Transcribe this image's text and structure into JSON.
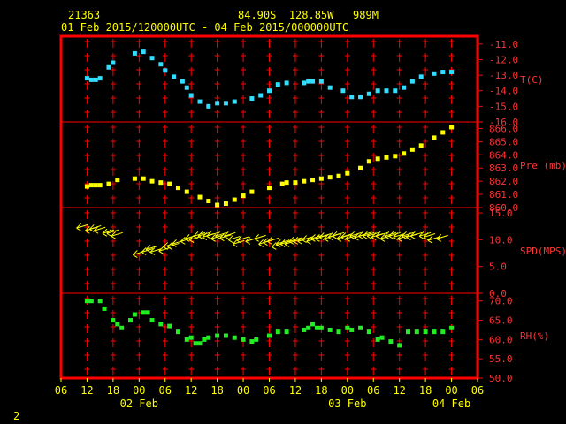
{
  "header": {
    "station_id": "21363",
    "location": "84.90S  128.85W   989M",
    "time_range": "01 Feb 2015/120000UTC - 04 Feb 2015/000000UTC"
  },
  "footer": {
    "page_number": "2"
  },
  "colors": {
    "background": "#000000",
    "frame": "#ff0000",
    "axis_text": "#ffff00",
    "temperature": "#33ddff",
    "pressure": "#ffff00",
    "wind": "#ffff00",
    "humidity": "#22ee22",
    "scale_text": "#ff3333"
  },
  "chart_data": [
    {
      "type": "scatter",
      "panel": "temperature",
      "ylabel": "T(C)",
      "ylim": [
        -16,
        -10.5
      ],
      "yticks": [
        -11.0,
        -12.0,
        -13.0,
        -14.0,
        -15.0,
        -16.0
      ],
      "ytick_labels": [
        "-11.0",
        "-12.0",
        "-13.0",
        "-14.0",
        "-15.0",
        "-16.0"
      ],
      "x": [
        12,
        13,
        14,
        15,
        17,
        18,
        23,
        25,
        27,
        29,
        30,
        32,
        34,
        35,
        36,
        38,
        40,
        42,
        44,
        46,
        50,
        52,
        54,
        56,
        58,
        62,
        63,
        64,
        66,
        68,
        71,
        73,
        75,
        77,
        79,
        81,
        83,
        85,
        87,
        89,
        92,
        94,
        96
      ],
      "y": [
        -13.2,
        -13.3,
        -13.3,
        -13.2,
        -12.5,
        -12.2,
        -11.6,
        -11.5,
        -11.9,
        -12.3,
        -12.7,
        -13.1,
        -13.4,
        -13.8,
        -14.3,
        -14.7,
        -15.0,
        -14.8,
        -14.8,
        -14.7,
        -14.5,
        -14.3,
        -14.0,
        -13.6,
        -13.5,
        -13.5,
        -13.4,
        -13.4,
        -13.4,
        -13.8,
        -14.0,
        -14.4,
        -14.4,
        -14.2,
        -14.0,
        -14.0,
        -14.0,
        -13.8,
        -13.4,
        -13.1,
        -12.9,
        -12.8,
        -12.8
      ]
    },
    {
      "type": "scatter",
      "panel": "pressure",
      "ylabel": "Pre (mb)",
      "ylim": [
        860,
        866.5
      ],
      "yticks": [
        860.0,
        861.0,
        862.0,
        863.0,
        864.0,
        865.0,
        866.0
      ],
      "ytick_labels": [
        "860.0",
        "861.0",
        "862.0",
        "863.0",
        "864.0",
        "865.0",
        "866.0"
      ],
      "x": [
        12,
        13,
        14,
        15,
        17,
        19,
        23,
        25,
        27,
        29,
        31,
        33,
        35,
        38,
        40,
        42,
        44,
        46,
        48,
        50,
        54,
        57,
        58,
        60,
        62,
        64,
        66,
        68,
        70,
        72,
        75,
        77,
        79,
        81,
        83,
        85,
        87,
        89,
        92,
        94,
        96
      ],
      "y": [
        861.6,
        861.7,
        861.7,
        861.7,
        861.8,
        862.1,
        862.2,
        862.2,
        862.0,
        861.9,
        861.8,
        861.5,
        861.2,
        860.8,
        860.5,
        860.2,
        860.3,
        860.6,
        860.9,
        861.2,
        861.5,
        861.8,
        861.9,
        861.9,
        862.0,
        862.1,
        862.2,
        862.3,
        862.4,
        862.6,
        863.0,
        863.5,
        863.7,
        863.8,
        863.9,
        864.1,
        864.4,
        864.7,
        865.3,
        865.7,
        866.1
      ]
    },
    {
      "type": "scatter",
      "panel": "wind",
      "ylabel": "SPD(MPS)",
      "ylim": [
        0,
        16
      ],
      "yticks": [
        0.0,
        5.0,
        10.0,
        15.0
      ],
      "ytick_labels": [
        "0.0",
        "5.0",
        "10.0",
        "15.0"
      ],
      "x": [
        11,
        13,
        14,
        15,
        17,
        18,
        19,
        24,
        26,
        27,
        28,
        30,
        31,
        32,
        33,
        35,
        36,
        37,
        38,
        39,
        40,
        41,
        42,
        43,
        44,
        45,
        46,
        47,
        48,
        50,
        52,
        53,
        54,
        55,
        56,
        57,
        58,
        59,
        60,
        61,
        62,
        63,
        64,
        65,
        66,
        67,
        68,
        69,
        70,
        71,
        72,
        73,
        74,
        75,
        76,
        77,
        78,
        79,
        80,
        81,
        82,
        83,
        84,
        85,
        86,
        87,
        88,
        90,
        91,
        92,
        94
      ],
      "y": [
        12.5,
        12.0,
        12.3,
        12.0,
        11.5,
        11.5,
        11.0,
        7.5,
        8.0,
        8.5,
        8.0,
        8.2,
        9.0,
        9.0,
        9.5,
        10.0,
        10.5,
        10.3,
        11.0,
        11.0,
        10.8,
        11.0,
        10.5,
        11.0,
        10.6,
        11.0,
        10.3,
        9.5,
        10.2,
        10.0,
        10.5,
        9.5,
        9.8,
        10.0,
        9.0,
        9.5,
        9.5,
        9.5,
        10.0,
        10.0,
        10.0,
        10.3,
        10.0,
        10.5,
        10.5,
        10.8,
        10.5,
        10.8,
        11.0,
        10.5,
        10.8,
        10.5,
        11.0,
        10.7,
        11.0,
        11.0,
        11.0,
        10.8,
        11.0,
        10.5,
        11.0,
        11.0,
        10.8,
        10.5,
        11.0,
        10.8,
        11.0,
        11.0,
        10.8,
        10.2,
        10.5
      ]
    },
    {
      "type": "scatter",
      "panel": "humidity",
      "ylabel": "RH(%)",
      "ylim": [
        50,
        72
      ],
      "yticks": [
        50.0,
        55.0,
        60.0,
        65.0,
        70.0
      ],
      "ytick_labels": [
        "50.0",
        "55.0",
        "60.0",
        "65.0",
        "70.0"
      ],
      "x": [
        12,
        13,
        15,
        16,
        18,
        19,
        20,
        22,
        23,
        25,
        26,
        27,
        29,
        31,
        33,
        35,
        36,
        37,
        38,
        39,
        40,
        42,
        44,
        46,
        48,
        50,
        51,
        54,
        56,
        58,
        62,
        63,
        64,
        65,
        66,
        68,
        70,
        72,
        73,
        75,
        77,
        79,
        80,
        82,
        84,
        86,
        88,
        90,
        92,
        94,
        96
      ],
      "y": [
        70.0,
        70.0,
        70.0,
        68.0,
        65.0,
        64.0,
        63.0,
        65.0,
        66.5,
        67.0,
        67.0,
        65.0,
        64.0,
        63.5,
        62.0,
        60.0,
        60.5,
        59.0,
        59.0,
        60.0,
        60.5,
        61.0,
        61.0,
        60.5,
        60.0,
        59.5,
        60.0,
        61.0,
        62.0,
        62.0,
        62.5,
        63.0,
        64.0,
        63.0,
        63.0,
        62.5,
        62.0,
        63.0,
        62.5,
        63.0,
        62.0,
        60.0,
        60.5,
        59.5,
        58.5,
        62.0,
        62.0,
        62.0,
        62.0,
        62.0,
        63.0
      ]
    },
    {
      "type": "axis",
      "panel": "time",
      "xlim": [
        6,
        102
      ],
      "xticks": [
        6,
        12,
        18,
        24,
        30,
        36,
        42,
        48,
        54,
        60,
        66,
        72,
        78,
        84,
        90,
        96,
        102
      ],
      "xtick_labels": [
        "06",
        "12",
        "18",
        "00",
        "06",
        "12",
        "18",
        "00",
        "06",
        "12",
        "18",
        "00",
        "06",
        "12",
        "18",
        "00",
        "06"
      ],
      "date_labels": [
        {
          "x": 24,
          "text": "02 Feb"
        },
        {
          "x": 72,
          "text": "03 Feb"
        },
        {
          "x": 96,
          "text": "04 Feb"
        }
      ]
    }
  ]
}
